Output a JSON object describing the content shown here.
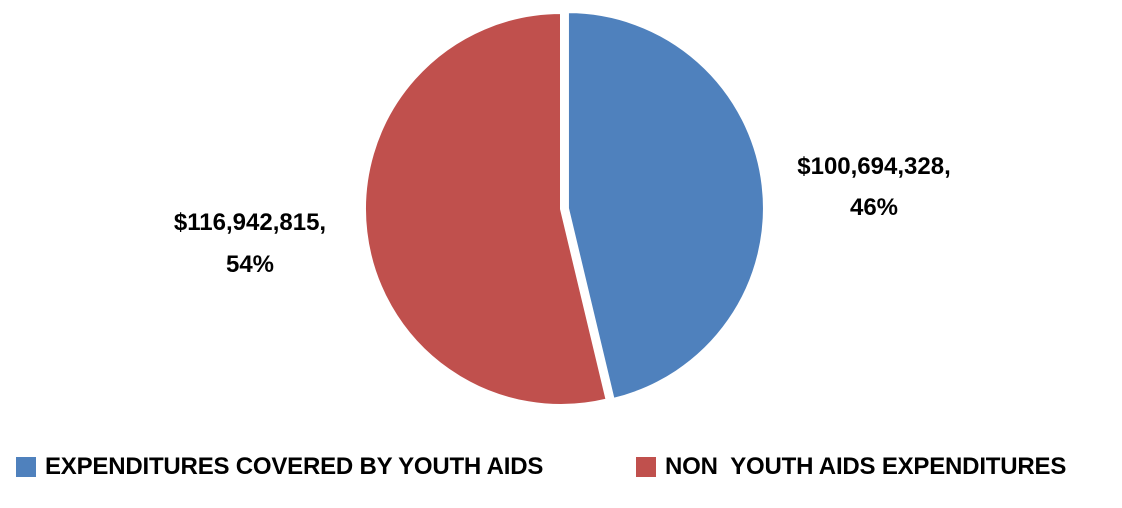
{
  "chart_data": {
    "type": "pie",
    "slices": [
      {
        "name": "EXPENDITURES COVERED BY YOUTH AIDS",
        "value": 100694328,
        "percent": 46,
        "value_label": "$100,694,328,",
        "percent_label": "46%",
        "color": "#4F81BD"
      },
      {
        "name": "NON  YOUTH AIDS EXPENDITURES",
        "value": 116942815,
        "percent": 54,
        "value_label": "$116,942,815,",
        "percent_label": "54%",
        "color": "#C0504D"
      }
    ],
    "legend_position": "bottom"
  }
}
